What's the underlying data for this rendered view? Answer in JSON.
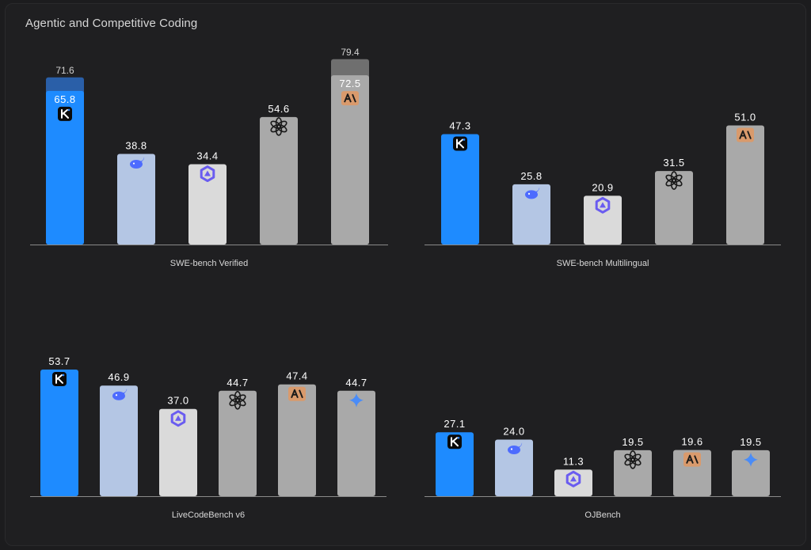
{
  "title": "Agentic and Competitive Coding",
  "colors": {
    "background": "#1f1f21",
    "kimi": "#1e8bff",
    "kimi_top": "#2a5fa8",
    "deepseek": "#b4c6e4",
    "qwen": "#dadada",
    "openai": "#a9a9a9",
    "claude": "#a9a9a9",
    "claude_top": "#6f6f6f",
    "gemini": "#a9a9a9",
    "text": "#ffffff",
    "text_muted": "#cfcfcf",
    "axis": "#8a8a8a"
  },
  "icons": {
    "kimi": "kimi-icon",
    "deepseek": "deepseek-whale-icon",
    "qwen": "qwen-icon",
    "openai": "openai-icon",
    "claude": "anthropic-icon",
    "gemini": "gemini-sparkle-icon"
  },
  "chart_data": [
    {
      "type": "bar",
      "xlabel": "SWE-bench Verified",
      "ylim": [
        0,
        85
      ],
      "bars": [
        {
          "model": "kimi",
          "value": 65.8,
          "extra": 71.6
        },
        {
          "model": "deepseek",
          "value": 38.8
        },
        {
          "model": "qwen",
          "value": 34.4
        },
        {
          "model": "openai",
          "value": 54.6
        },
        {
          "model": "claude",
          "value": 72.5,
          "extra": 79.4
        }
      ]
    },
    {
      "type": "bar",
      "xlabel": "SWE-bench Multilingual",
      "ylim": [
        0,
        85
      ],
      "bars": [
        {
          "model": "kimi",
          "value": 47.3
        },
        {
          "model": "deepseek",
          "value": 25.8
        },
        {
          "model": "qwen",
          "value": 20.9
        },
        {
          "model": "openai",
          "value": 31.5
        },
        {
          "model": "claude",
          "value": 51.0
        }
      ]
    },
    {
      "type": "bar",
      "xlabel": "LiveCodeBench v6",
      "ylim": [
        0,
        85
      ],
      "bars": [
        {
          "model": "kimi",
          "value": 53.7
        },
        {
          "model": "deepseek",
          "value": 46.9
        },
        {
          "model": "qwen",
          "value": 37.0
        },
        {
          "model": "openai",
          "value": 44.7
        },
        {
          "model": "claude",
          "value": 47.4
        },
        {
          "model": "gemini",
          "value": 44.7
        }
      ]
    },
    {
      "type": "bar",
      "xlabel": "OJBench",
      "ylim": [
        0,
        45
      ],
      "bars": [
        {
          "model": "kimi",
          "value": 27.1
        },
        {
          "model": "deepseek",
          "value": 24.0
        },
        {
          "model": "qwen",
          "value": 11.3
        },
        {
          "model": "openai",
          "value": 19.5
        },
        {
          "model": "claude",
          "value": 19.6
        },
        {
          "model": "gemini",
          "value": 19.5
        }
      ]
    }
  ]
}
